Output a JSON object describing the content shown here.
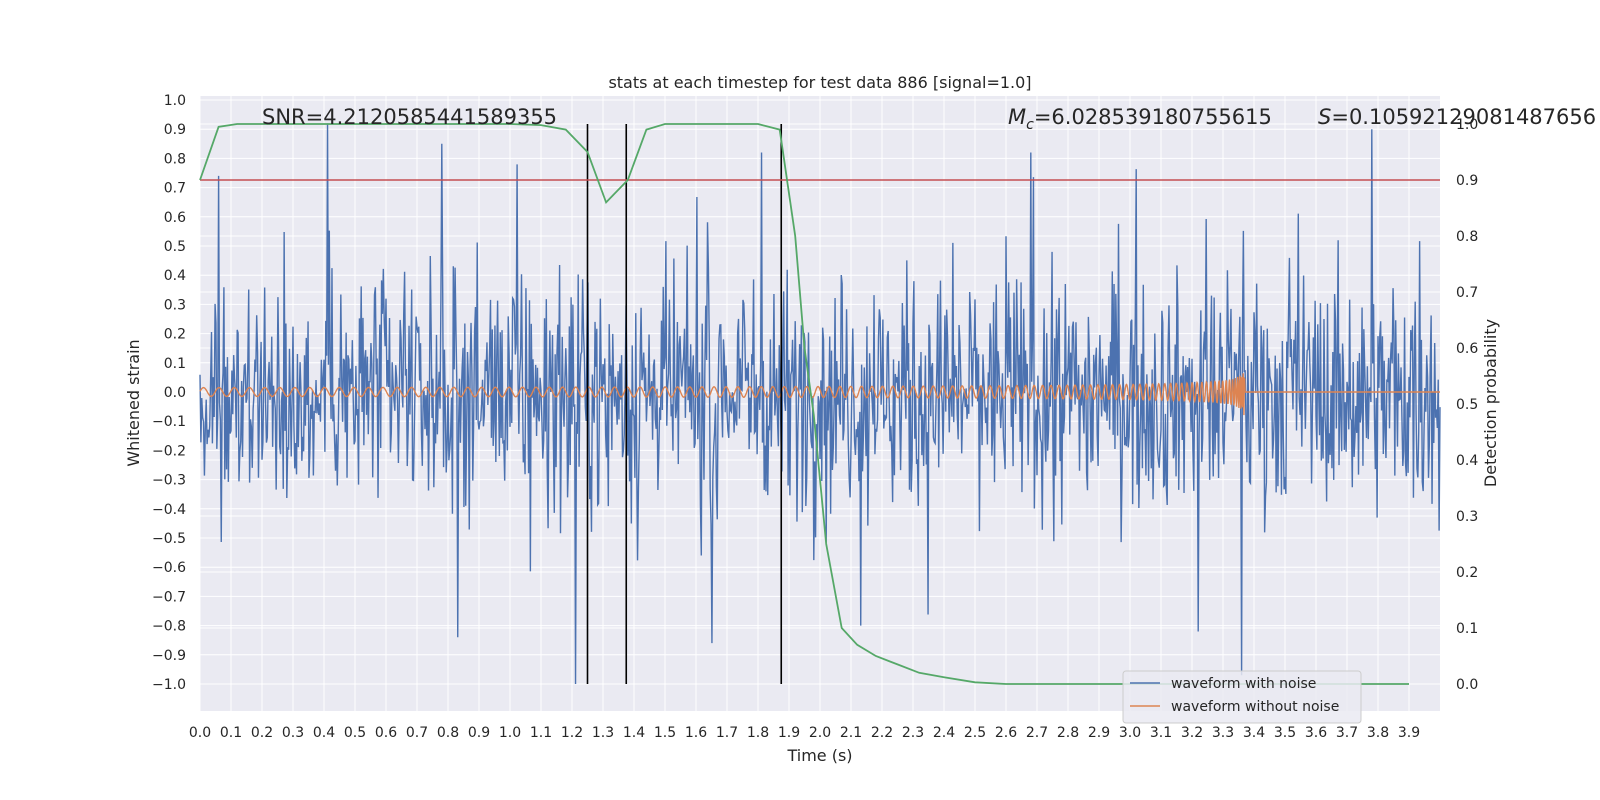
{
  "chart_data": {
    "type": "line",
    "title": "stats at each timestep for test data 886 [signal=1.0]",
    "xlabel": "Time (s)",
    "ylabel": "Whitened strain",
    "y2label": "Detection probability",
    "xlim": [
      0.0,
      4.0
    ],
    "ylim": [
      -1.1,
      1.1
    ],
    "y2lim": [
      -0.05,
      1.0
    ],
    "x_ticks": [
      "0.0",
      "0.1",
      "0.2",
      "0.3",
      "0.4",
      "0.5",
      "0.6",
      "0.7",
      "0.8",
      "0.9",
      "1.0",
      "1.1",
      "1.2",
      "1.3",
      "1.4",
      "1.5",
      "1.6",
      "1.7",
      "1.8",
      "1.9",
      "2.0",
      "2.1",
      "2.2",
      "2.3",
      "2.4",
      "2.5",
      "2.6",
      "2.7",
      "2.8",
      "2.9",
      "3.0",
      "3.1",
      "3.2",
      "3.3",
      "3.4",
      "3.5",
      "3.6",
      "3.7",
      "3.8",
      "3.9"
    ],
    "y_ticks": [
      "1.0",
      "0.9",
      "0.8",
      "0.7",
      "0.6",
      "0.5",
      "0.4",
      "0.3",
      "0.2",
      "0.1",
      "0.0",
      "−0.1",
      "−0.2",
      "−0.3",
      "−0.4",
      "−0.5",
      "−0.6",
      "−0.7",
      "−0.8",
      "−0.9",
      "−1.0"
    ],
    "y2_ticks": [
      "1.0",
      "0.9",
      "0.8",
      "0.7",
      "0.6",
      "0.5",
      "0.4",
      "0.3",
      "0.2",
      "0.1",
      "0.0"
    ],
    "annotations": {
      "snr": "SNR=4.2120585441589355",
      "mc_symbol": "M",
      "mc_sub": "c",
      "mc_value": "=6.028539180755615",
      "s_symbol": "S",
      "s_value": "=0.10592129081487656"
    },
    "legend": {
      "placement": "bottom-right",
      "entries": [
        "waveform with noise",
        "waveform without noise"
      ]
    },
    "colors": {
      "noise": "#4c72b0",
      "clean": "#dd8452",
      "probability": "#55a868",
      "threshold": "#c44e52",
      "markers": "#000000",
      "plot_bg": "#eaeaf2",
      "grid": "#ffffff"
    },
    "series": [
      {
        "name": "waveform with noise",
        "kind": "noise",
        "x_range": [
          0.0,
          4.0
        ],
        "amplitude_typical": 0.45,
        "spikes": [
          {
            "x": 0.41,
            "y": 0.92
          },
          {
            "x": 0.78,
            "y": 0.85
          },
          {
            "x": 0.06,
            "y": 0.74
          },
          {
            "x": 1.81,
            "y": 0.82
          },
          {
            "x": 2.68,
            "y": 0.82
          },
          {
            "x": 3.78,
            "y": 0.9
          },
          {
            "x": 0.83,
            "y": -0.84
          },
          {
            "x": 1.21,
            "y": -1.0
          },
          {
            "x": 1.65,
            "y": -0.86
          },
          {
            "x": 3.36,
            "y": -0.97
          },
          {
            "x": 3.22,
            "y": -0.82
          },
          {
            "x": 2.13,
            "y": -0.8
          }
        ]
      },
      {
        "name": "waveform without noise",
        "kind": "chirp",
        "start_amp": 0.015,
        "end_amp": 0.12,
        "merger_time": 3.37,
        "start_freq_hz": 20,
        "end_freq_hz": 250
      },
      {
        "name": "detection probability",
        "axis": "y2",
        "x": [
          0.0,
          0.06,
          0.12,
          0.2,
          0.4,
          0.6,
          0.8,
          1.0,
          1.1,
          1.18,
          1.25,
          1.31,
          1.38,
          1.44,
          1.5,
          1.6,
          1.7,
          1.8,
          1.87,
          1.92,
          1.95,
          1.98,
          2.02,
          2.07,
          2.12,
          2.18,
          2.25,
          2.32,
          2.4,
          2.5,
          2.6,
          2.8,
          3.0,
          3.3,
          3.6,
          3.9
        ],
        "y": [
          0.9,
          0.995,
          1.0,
          1.0,
          1.0,
          1.0,
          1.0,
          1.0,
          0.998,
          0.99,
          0.95,
          0.86,
          0.9,
          0.99,
          1.0,
          1.0,
          1.0,
          1.0,
          0.99,
          0.8,
          0.6,
          0.48,
          0.25,
          0.1,
          0.07,
          0.05,
          0.035,
          0.02,
          0.012,
          0.003,
          0.0,
          0.0,
          0.0,
          0.0,
          0.0,
          0.0
        ]
      }
    ],
    "threshold": {
      "axis": "y2",
      "y": 0.9
    },
    "vertical_markers": [
      1.25,
      1.375,
      1.875
    ]
  }
}
